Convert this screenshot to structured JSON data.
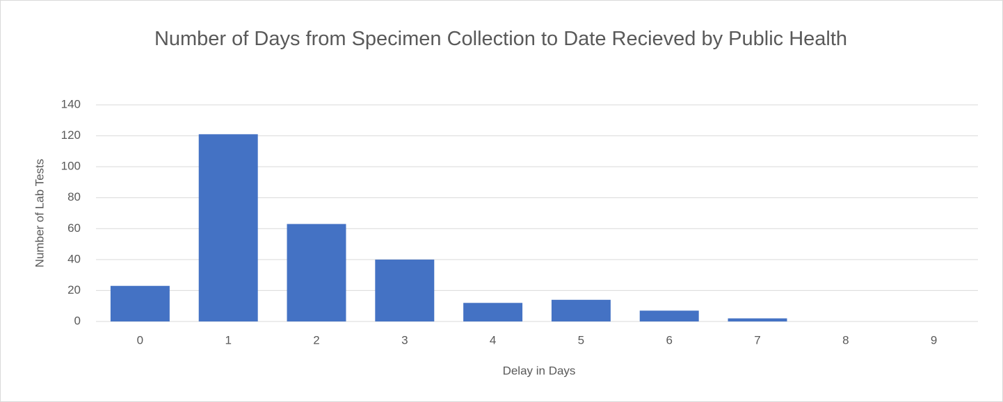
{
  "chart_data": {
    "type": "bar",
    "title": "Number of Days from Specimen Collection to Date Recieved by Public Health",
    "x_label": "Delay in Days",
    "y_label": "Number of Lab Tests",
    "categories": [
      "0",
      "1",
      "2",
      "3",
      "4",
      "5",
      "6",
      "7",
      "8",
      "9"
    ],
    "values": [
      23,
      121,
      63,
      40,
      12,
      14,
      7,
      2,
      0,
      0
    ],
    "color": "#4472c4",
    "ylim": [
      0,
      140
    ],
    "yticks": [
      0,
      20,
      40,
      60,
      80,
      100,
      120,
      140
    ],
    "grid": true
  }
}
